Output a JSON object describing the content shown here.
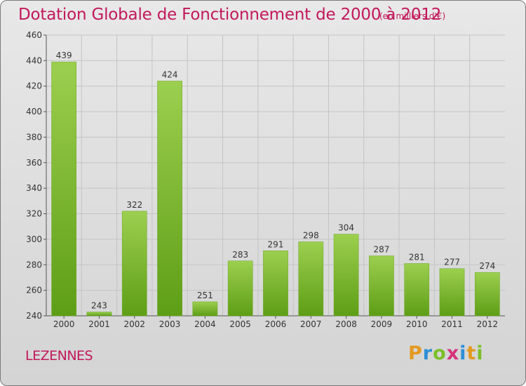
{
  "title": "Dotation Globale de Fonctionnement de 2000 à 2012",
  "subtitle": "(en milliers d'€)",
  "place": "LEZENNES",
  "logo": {
    "text": "Proxiti",
    "letters": [
      {
        "ch": "P",
        "color": "#e39a1f"
      },
      {
        "ch": "r",
        "color": "#2d8fd5"
      },
      {
        "ch": "o",
        "color": "#7bbf2a"
      },
      {
        "ch": "x",
        "color": "#d6337a"
      },
      {
        "ch": "i",
        "color": "#2d8fd5"
      },
      {
        "ch": "t",
        "color": "#e39a1f"
      },
      {
        "ch": "i",
        "color": "#7bbf2a"
      }
    ]
  },
  "colors": {
    "bar_top": "#9ccf4f",
    "bar_bottom": "#5e9e16",
    "title": "#c2185b",
    "grid": "#c4c4c4"
  },
  "chart_data": {
    "type": "bar",
    "title": "Dotation Globale de Fonctionnement de 2000 à 2012",
    "subtitle": "(en milliers d'€)",
    "xlabel": "",
    "ylabel": "",
    "categories": [
      "2000",
      "2001",
      "2002",
      "2003",
      "2004",
      "2005",
      "2006",
      "2007",
      "2008",
      "2009",
      "2010",
      "2011",
      "2012"
    ],
    "values": [
      439,
      243,
      322,
      424,
      251,
      283,
      291,
      298,
      304,
      287,
      281,
      277,
      274
    ],
    "data_labels": [
      "439",
      "243",
      "322",
      "424",
      "251",
      "283",
      "291",
      "298",
      "304",
      "287",
      "281",
      "277",
      "274"
    ],
    "ylim": [
      240,
      460
    ],
    "yticks": [
      240,
      260,
      280,
      300,
      320,
      340,
      360,
      380,
      400,
      420,
      440,
      460
    ],
    "grid": true,
    "legend": "none"
  }
}
